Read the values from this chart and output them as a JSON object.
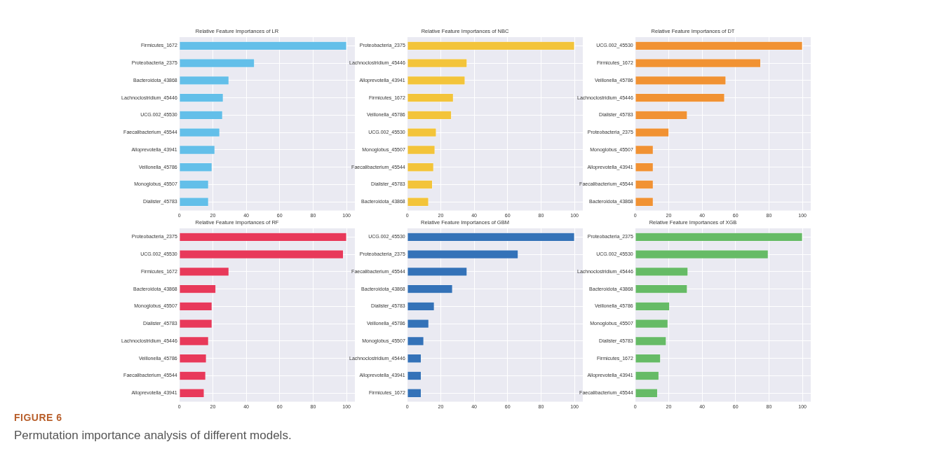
{
  "chart_data": [
    {
      "type": "bar",
      "orientation": "horizontal",
      "title": "Relative Feature Importances of LR",
      "categories": [
        "Firmicutes_1672",
        "Proteobacteria_2375",
        "Bacteroidota_43868",
        "Lachnoclostridium_45446",
        "UCG.002_45530",
        "Faecalibacterium_45544",
        "Alloprevotella_43941",
        "Veillonella_45786",
        "Monoglobus_45507",
        "Dialister_45783"
      ],
      "values": [
        100,
        44.9,
        29.6,
        26.2,
        25.8,
        24.1,
        21.2,
        19.5,
        17.4,
        17.4
      ],
      "color": "#63bfe9",
      "xlim": [
        0,
        105
      ],
      "xticks": [
        0,
        20,
        40,
        60,
        80,
        100
      ],
      "grid": true
    },
    {
      "type": "bar",
      "orientation": "horizontal",
      "title": "Relative Feature Importances of NBC",
      "categories": [
        "Proteobacteria_2375",
        "Lachnoclostridium_45446",
        "Alloprevotella_43941",
        "Firmicutes_1672",
        "Veillonella_45786",
        "UCG.002_45530",
        "Monoglobus_45507",
        "Faecalibacterium_45544",
        "Dialister_45783",
        "Bacteroidota_43868"
      ],
      "values": [
        100,
        35.7,
        34.5,
        27.5,
        26.4,
        17.3,
        16.5,
        15.7,
        15,
        12.7
      ],
      "color": "#f3c43a",
      "xlim": [
        0,
        105
      ],
      "xticks": [
        0,
        20,
        40,
        60,
        80,
        100
      ],
      "grid": true
    },
    {
      "type": "bar",
      "orientation": "horizontal",
      "title": "Relative Feature Importances of DT",
      "categories": [
        "UCG.002_45530",
        "Firmicutes_1672",
        "Veillonella_45786",
        "Lachnoclostridium_45446",
        "Dialister_45783",
        "Proteobacteria_2375",
        "Monoglobus_45507",
        "Alloprevotella_43941",
        "Faecalibacterium_45544",
        "Bacteroidota_43868"
      ],
      "values": [
        100,
        75,
        54.2,
        53.4,
        31.1,
        20.1,
        10.7,
        10.7,
        10.7,
        10.7
      ],
      "color": "#f19233",
      "xlim": [
        0,
        105
      ],
      "xticks": [
        0,
        20,
        40,
        60,
        80,
        100
      ],
      "grid": true
    },
    {
      "type": "bar",
      "orientation": "horizontal",
      "title": "Relative Feature Importances of RF",
      "categories": [
        "Proteobacteria_2375",
        "UCG.002_45530",
        "Firmicutes_1672",
        "Bacteroidota_43868",
        "Monoglobus_45507",
        "Dialister_45783",
        "Lachnoclostridium_45446",
        "Veillonella_45786",
        "Faecalibacterium_45544",
        "Alloprevotella_43941"
      ],
      "values": [
        100,
        98.1,
        29.6,
        21.8,
        19.5,
        19.5,
        17.4,
        16.1,
        15.7,
        14.8
      ],
      "color": "#e8395a",
      "xlim": [
        0,
        105
      ],
      "xticks": [
        0,
        20,
        40,
        60,
        80,
        100
      ],
      "grid": true
    },
    {
      "type": "bar",
      "orientation": "horizontal",
      "title": "Relative Feature Importances of GBM",
      "categories": [
        "UCG.002_45530",
        "Proteobacteria_2375",
        "Faecalibacterium_45544",
        "Bacteroidota_43868",
        "Dialister_45783",
        "Veillonella_45786",
        "Monoglobus_45507",
        "Lachnoclostridium_45446",
        "Alloprevotella_43941",
        "Firmicutes_1672"
      ],
      "values": [
        100,
        66.3,
        35.7,
        27,
        16.1,
        12.8,
        9.8,
        8.3,
        8.3,
        8.3
      ],
      "color": "#3472b8",
      "xlim": [
        0,
        105
      ],
      "xticks": [
        0,
        20,
        40,
        60,
        80,
        100
      ],
      "grid": true
    },
    {
      "type": "bar",
      "orientation": "horizontal",
      "title": "Relative Feature Importances of XGB",
      "categories": [
        "Proteobacteria_2375",
        "UCG.002_45530",
        "Lachnoclostridium_45446",
        "Bacteroidota_43868",
        "Veillonella_45786",
        "Monoglobus_45507",
        "Dialister_45783",
        "Firmicutes_1672",
        "Alloprevotella_43941",
        "Faecalibacterium_45544"
      ],
      "values": [
        100,
        79.5,
        31.5,
        31.1,
        20.5,
        19.5,
        18.5,
        15.1,
        14.1,
        13.3
      ],
      "color": "#66bb66",
      "xlim": [
        0,
        105
      ],
      "xticks": [
        0,
        20,
        40,
        60,
        80,
        100
      ],
      "grid": true,
      "annotations": [
        "FIGURE 6",
        "Permutation importance analysis of different models."
      ]
    }
  ]
}
